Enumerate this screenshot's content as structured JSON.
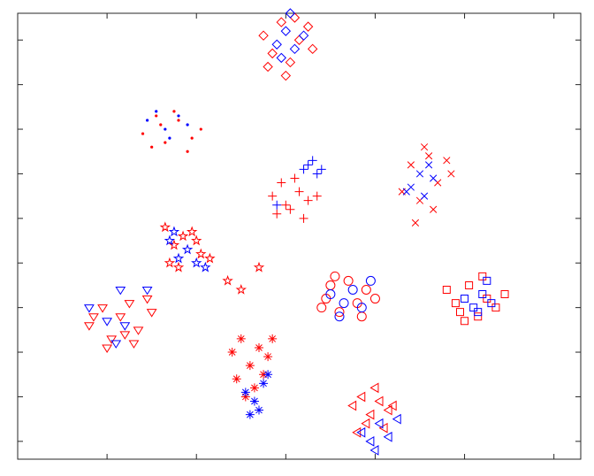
{
  "chart_data": {
    "type": "scatter",
    "xlim": [
      -60,
      66
    ],
    "ylim": [
      -54,
      46
    ],
    "xticks": [
      -40,
      -20,
      0,
      20,
      40,
      60
    ],
    "yticks": [
      -50,
      -40,
      -30,
      -20,
      -10,
      0,
      10,
      20,
      30,
      40
    ],
    "grid": false,
    "series": [
      {
        "marker": "diamond",
        "color": "#ff0000",
        "x": [
          -5,
          -3,
          -1,
          1,
          3,
          5,
          -4,
          2,
          6,
          0
        ],
        "y": [
          41,
          37,
          44,
          35,
          40,
          43,
          34,
          45,
          38,
          32
        ]
      },
      {
        "marker": "diamond",
        "color": "#0000ff",
        "x": [
          -2,
          0,
          2,
          4,
          -1,
          1
        ],
        "y": [
          39,
          42,
          38,
          41,
          36,
          46
        ]
      },
      {
        "marker": "dot",
        "color": "#ff0000",
        "x": [
          -32,
          -29,
          -27,
          -24,
          -21,
          -19,
          -30,
          -25,
          -22,
          -28
        ],
        "y": [
          19,
          23,
          17,
          22,
          18,
          20,
          16,
          24,
          15,
          21
        ]
      },
      {
        "marker": "dot",
        "color": "#0000ff",
        "x": [
          -31,
          -27,
          -24,
          -22,
          -26,
          -29
        ],
        "y": [
          22,
          20,
          23,
          21,
          18,
          24
        ]
      },
      {
        "marker": "plus",
        "color": "#ff0000",
        "x": [
          -3,
          -1,
          1,
          3,
          5,
          -2,
          2,
          7,
          0,
          4
        ],
        "y": [
          5,
          8,
          2,
          6,
          4,
          1,
          9,
          5,
          3,
          0
        ]
      },
      {
        "marker": "plus",
        "color": "#0000ff",
        "x": [
          4,
          6,
          7,
          5,
          8,
          -2
        ],
        "y": [
          11,
          13,
          10,
          12,
          11,
          3
        ]
      },
      {
        "marker": "x",
        "color": "#ff0000",
        "x": [
          26,
          28,
          30,
          32,
          34,
          36,
          29,
          33,
          31,
          37
        ],
        "y": [
          6,
          12,
          4,
          14,
          8,
          13,
          -1,
          2,
          16,
          10
        ]
      },
      {
        "marker": "x",
        "color": "#0000ff",
        "x": [
          28,
          30,
          31,
          32,
          33,
          27
        ],
        "y": [
          7,
          10,
          5,
          12,
          9,
          6
        ]
      },
      {
        "marker": "pentagram",
        "color": "#ff0000",
        "x": [
          -27,
          -25,
          -23,
          -21,
          -19,
          -24,
          -17,
          -13,
          -10,
          -6,
          -26,
          -20
        ],
        "y": [
          -2,
          -6,
          -4,
          -3,
          -8,
          -11,
          -9,
          -14,
          -16,
          -11,
          -10,
          -5
        ]
      },
      {
        "marker": "pentagram",
        "color": "#0000ff",
        "x": [
          -26,
          -24,
          -22,
          -20,
          -25,
          -18
        ],
        "y": [
          -5,
          -9,
          -7,
          -10,
          -3,
          -11
        ]
      },
      {
        "marker": "circle",
        "color": "#ff0000",
        "x": [
          8,
          10,
          12,
          14,
          16,
          18,
          20,
          11,
          17,
          9
        ],
        "y": [
          -20,
          -15,
          -21,
          -14,
          -19,
          -16,
          -18,
          -13,
          -22,
          -18
        ]
      },
      {
        "marker": "circle",
        "color": "#0000ff",
        "x": [
          10,
          13,
          15,
          17,
          19,
          12
        ],
        "y": [
          -17,
          -19,
          -16,
          -20,
          -14,
          -22
        ]
      },
      {
        "marker": "square",
        "color": "#ff0000",
        "x": [
          36,
          39,
          41,
          43,
          45,
          47,
          49,
          40,
          44,
          38
        ],
        "y": [
          -16,
          -21,
          -15,
          -22,
          -18,
          -20,
          -17,
          -23,
          -13,
          -19
        ]
      },
      {
        "marker": "square",
        "color": "#0000ff",
        "x": [
          40,
          42,
          44,
          46,
          43,
          45
        ],
        "y": [
          -18,
          -20,
          -17,
          -19,
          -21,
          -14
        ]
      },
      {
        "marker": "triangle-down",
        "color": "#ff0000",
        "x": [
          -44,
          -41,
          -39,
          -37,
          -35,
          -33,
          -31,
          -40,
          -36,
          -30,
          -43,
          -34
        ],
        "y": [
          -24,
          -20,
          -27,
          -22,
          -19,
          -25,
          -18,
          -29,
          -26,
          -21,
          -22,
          -28
        ]
      },
      {
        "marker": "triangle-down",
        "color": "#0000ff",
        "x": [
          -44,
          -40,
          -38,
          -36,
          -37,
          -31
        ],
        "y": [
          -20,
          -23,
          -28,
          -24,
          -16,
          -16
        ]
      },
      {
        "marker": "asterisk",
        "color": "#ff0000",
        "x": [
          -12,
          -10,
          -8,
          -6,
          -4,
          -11,
          -7,
          -5,
          -9,
          -3
        ],
        "y": [
          -30,
          -27,
          -33,
          -29,
          -31,
          -36,
          -38,
          -35,
          -40,
          -27
        ]
      },
      {
        "marker": "asterisk",
        "color": "#0000ff",
        "x": [
          -9,
          -7,
          -5,
          -6,
          -8,
          -4
        ],
        "y": [
          -39,
          -41,
          -37,
          -43,
          -44,
          -35
        ]
      },
      {
        "marker": "triangle-left",
        "color": "#ff0000",
        "x": [
          15,
          17,
          19,
          21,
          23,
          16,
          20,
          18,
          22,
          24
        ],
        "y": [
          -42,
          -40,
          -44,
          -41,
          -43,
          -48,
          -38,
          -46,
          -47,
          -42
        ]
      },
      {
        "marker": "triangle-left",
        "color": "#0000ff",
        "x": [
          17,
          19,
          21,
          23,
          25,
          20
        ],
        "y": [
          -48,
          -50,
          -46,
          -49,
          -45,
          -52
        ]
      }
    ]
  }
}
